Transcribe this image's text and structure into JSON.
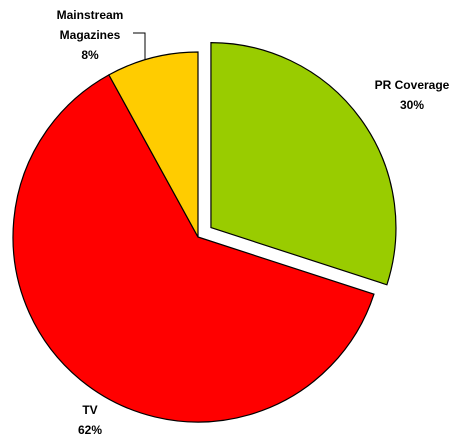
{
  "chart_data": {
    "type": "pie",
    "categories": [
      "PR Coverage",
      "TV",
      "Mainstream Magazines"
    ],
    "values": [
      30,
      62,
      8
    ],
    "value_labels": [
      "30%",
      "62%",
      "8%"
    ],
    "colors": [
      "#99cc00",
      "#ff0000",
      "#ffcc00"
    ],
    "exploded": [
      true,
      false,
      false
    ]
  }
}
